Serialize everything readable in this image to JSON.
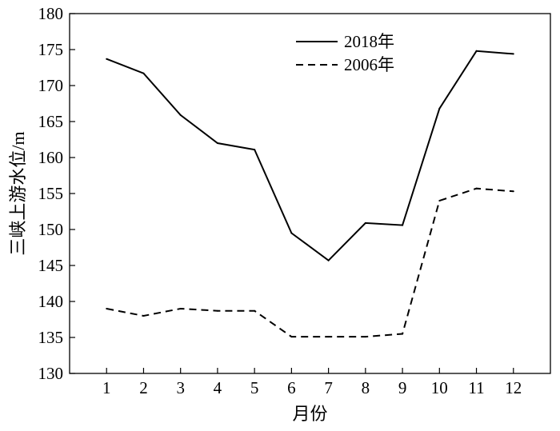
{
  "chart_data": {
    "type": "line",
    "title": "",
    "xlabel": "月份",
    "ylabel": "三峡上游水位/m",
    "categories": [
      "1",
      "2",
      "3",
      "4",
      "5",
      "6",
      "7",
      "8",
      "9",
      "10",
      "11",
      "12"
    ],
    "x": [
      1,
      2,
      3,
      4,
      5,
      6,
      7,
      8,
      9,
      10,
      11,
      12
    ],
    "xlim": [
      0,
      13
    ],
    "ylim": [
      130,
      180
    ],
    "yticks": [
      130,
      135,
      140,
      145,
      150,
      155,
      160,
      165,
      170,
      175,
      180
    ],
    "grid": false,
    "legend_position": "top-right",
    "series": [
      {
        "name": "2018年",
        "line_style": "solid",
        "color": "#000000",
        "values": [
          173.7,
          171.7,
          165.9,
          162.0,
          161.1,
          149.5,
          145.7,
          150.9,
          150.6,
          166.8,
          174.8,
          174.4
        ]
      },
      {
        "name": "2006年",
        "line_style": "dashed",
        "color": "#000000",
        "values": [
          139.0,
          138.0,
          139.0,
          138.7,
          138.7,
          135.1,
          135.1,
          135.1,
          135.5,
          154.0,
          155.7,
          155.3
        ]
      }
    ]
  }
}
